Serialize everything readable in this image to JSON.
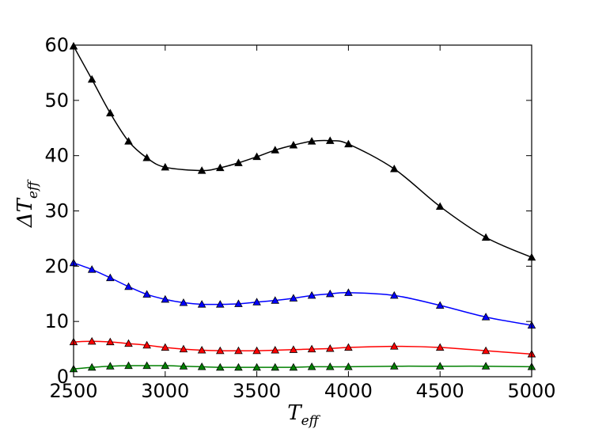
{
  "chart_data": {
    "type": "line",
    "title": "",
    "xlabel": "T",
    "xlabel_subscript": "eff",
    "ylabel": "ΔT",
    "ylabel_subscript": "eff",
    "xlim": [
      2500,
      5000
    ],
    "ylim": [
      0,
      60
    ],
    "xticks": [
      2500,
      3000,
      3500,
      4000,
      4500,
      5000
    ],
    "yticks": [
      0,
      10,
      20,
      30,
      40,
      50,
      60
    ],
    "grid": false,
    "marker": "triangle-up",
    "series": [
      {
        "color": "#000000",
        "x": [
          2500,
          2600,
          2700,
          2800,
          2900,
          3000,
          3200,
          3300,
          3400,
          3500,
          3600,
          3700,
          3800,
          3900,
          4000,
          4250,
          4500,
          4750,
          5000
        ],
        "y": [
          59.8,
          53.8,
          47.7,
          42.6,
          39.6,
          37.9,
          37.3,
          37.8,
          38.7,
          39.8,
          41.0,
          41.9,
          42.6,
          42.7,
          42.1,
          37.6,
          30.8,
          25.2,
          21.6
        ]
      },
      {
        "color": "#0000ff",
        "x": [
          2500,
          2600,
          2700,
          2800,
          2900,
          3000,
          3100,
          3200,
          3300,
          3400,
          3500,
          3600,
          3700,
          3800,
          3900,
          4000,
          4250,
          4500,
          4750,
          5000
        ],
        "y": [
          20.6,
          19.4,
          17.9,
          16.3,
          14.9,
          14.0,
          13.4,
          13.1,
          13.1,
          13.2,
          13.5,
          13.8,
          14.2,
          14.7,
          15.0,
          15.2,
          14.7,
          12.9,
          10.8,
          9.3
        ]
      },
      {
        "color": "#ff0000",
        "x": [
          2500,
          2600,
          2700,
          2800,
          2900,
          3000,
          3100,
          3200,
          3300,
          3400,
          3500,
          3600,
          3700,
          3800,
          3900,
          4000,
          4250,
          4500,
          4750,
          5000
        ],
        "y": [
          6.3,
          6.4,
          6.3,
          6.0,
          5.7,
          5.3,
          5.0,
          4.8,
          4.7,
          4.7,
          4.7,
          4.8,
          4.9,
          5.0,
          5.1,
          5.3,
          5.5,
          5.3,
          4.7,
          4.1
        ]
      },
      {
        "color": "#008000",
        "x": [
          2500,
          2600,
          2700,
          2800,
          2900,
          3000,
          3100,
          3200,
          3300,
          3400,
          3500,
          3600,
          3700,
          3800,
          3900,
          4000,
          4250,
          4500,
          4750,
          5000
        ],
        "y": [
          1.4,
          1.7,
          1.9,
          2.0,
          2.0,
          2.0,
          1.9,
          1.8,
          1.7,
          1.7,
          1.7,
          1.7,
          1.7,
          1.8,
          1.8,
          1.8,
          1.9,
          1.9,
          1.9,
          1.8
        ]
      }
    ]
  }
}
